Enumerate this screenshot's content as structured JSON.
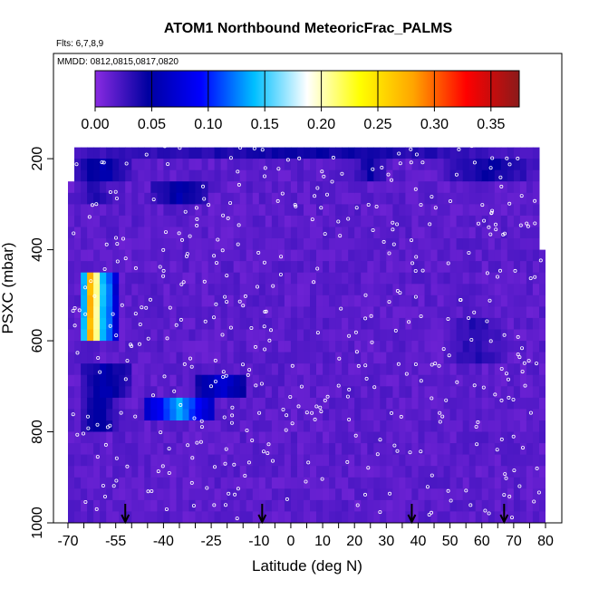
{
  "chart_data": {
    "type": "heatmap",
    "title": "ATOM1 Northbound MeteoricFrac_PALMS",
    "flights_note": "Flts: 6,7,8,9",
    "dates_note": "MMDD: 0812,0815,0817,0820",
    "xlabel": "Latitude (deg N)",
    "ylabel": "PSXC (mbar)",
    "xlim": [
      -70,
      80
    ],
    "ylim": [
      1000,
      150
    ],
    "x_ticks": [
      -70,
      -55,
      -40,
      -25,
      -10,
      0,
      10,
      20,
      30,
      40,
      50,
      60,
      70,
      80
    ],
    "x_tick_labels": [
      "-70",
      "-55",
      "-40",
      "-25",
      "-10",
      "0",
      "10",
      "20",
      "30",
      "40",
      "50",
      "60",
      "70",
      "80"
    ],
    "y_ticks": [
      200,
      400,
      600,
      800,
      1000
    ],
    "y_tick_labels": [
      "200",
      "400",
      "600",
      "800",
      "1000"
    ],
    "colorbar": {
      "ticks": [
        0.0,
        0.05,
        0.1,
        0.15,
        0.2,
        0.25,
        0.3,
        0.35
      ],
      "tick_labels": [
        "0.00",
        "0.05",
        "0.10",
        "0.15",
        "0.20",
        "0.25",
        "0.30",
        "0.35"
      ],
      "range": [
        0,
        0.375
      ],
      "colors": [
        "#8A2BE2",
        "#0000A0",
        "#0000FF",
        "#00BFFF",
        "#FFFFFF",
        "#FFFF00",
        "#FFA500",
        "#FF0000",
        "#8B1A1A"
      ]
    },
    "background_value": 0.01,
    "features": [
      {
        "lat": [
          -68,
          77
        ],
        "p": [
          165,
          205
        ],
        "value": 0.04
      },
      {
        "lat": [
          -68,
          -50
        ],
        "p": [
          205,
          255
        ],
        "value": 0.05
      },
      {
        "lat": [
          -44,
          -26
        ],
        "p": [
          250,
          300
        ],
        "value": 0.05
      },
      {
        "lat": [
          -68,
          -55
        ],
        "p": [
          255,
          300
        ],
        "value": 0.03
      },
      {
        "lat": [
          20,
          30
        ],
        "p": [
          205,
          250
        ],
        "value": 0.04
      },
      {
        "lat": [
          48,
          77
        ],
        "p": [
          205,
          255
        ],
        "value": 0.04
      },
      {
        "lat": [
          -65,
          -60
        ],
        "p": [
          460,
          610
        ],
        "value": 0.3
      },
      {
        "lat": [
          -62,
          -55
        ],
        "p": [
          460,
          610
        ],
        "value": 0.15
      },
      {
        "lat": [
          -66,
          -50
        ],
        "p": [
          660,
          730
        ],
        "value": 0.05
      },
      {
        "lat": [
          -45,
          -25
        ],
        "p": [
          730,
          780
        ],
        "value": 0.13
      },
      {
        "lat": [
          -66,
          -55
        ],
        "p": [
          730,
          800
        ],
        "value": 0.05
      },
      {
        "lat": [
          -30,
          -14
        ],
        "p": [
          680,
          730
        ],
        "value": 0.07
      },
      {
        "lat": [
          48,
          68
        ],
        "p": [
          560,
          660
        ],
        "value": 0.03
      }
    ],
    "arrows_lat": [
      -52,
      -9,
      38,
      67
    ]
  }
}
